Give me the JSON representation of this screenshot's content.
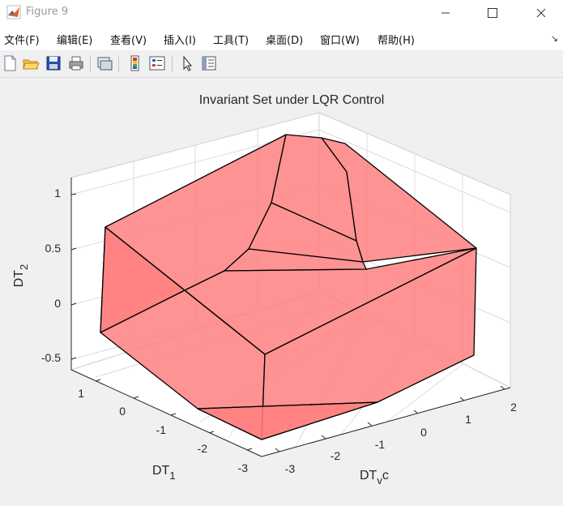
{
  "window": {
    "title": "Figure 9",
    "minimize_icon": "minimize-icon",
    "maximize_icon": "maximize-icon",
    "close_icon": "close-icon"
  },
  "menu": [
    {
      "label": "文件(F)"
    },
    {
      "label": "编辑(E)"
    },
    {
      "label": "查看(V)"
    },
    {
      "label": "插入(I)"
    },
    {
      "label": "工具(T)"
    },
    {
      "label": "桌面(D)"
    },
    {
      "label": "窗口(W)"
    },
    {
      "label": "帮助(H)"
    }
  ],
  "toolbar": {
    "icons": [
      "new-figure-icon",
      "open-file-icon",
      "save-icon",
      "print-icon",
      "link-plot-icon",
      "colorbar-icon",
      "legend-icon",
      "select-arrow-icon",
      "property-inspector-icon"
    ]
  },
  "plot": {
    "title": "Invariant Set under LQR Control",
    "zlabel_main": "DT",
    "zlabel_sub": "2",
    "ylabel_main": "DT",
    "ylabel_sub": "1",
    "xlabel_main": "DT",
    "xlabel_sub": "v",
    "xlabel_suffix": "c",
    "z_ticks": [
      "1",
      "0.5",
      "0",
      "-0.5"
    ],
    "y_ticks": [
      "1",
      "0",
      "-1",
      "-2",
      "-3"
    ],
    "x_ticks": [
      "-3",
      "-2",
      "-1",
      "0",
      "1",
      "2"
    ],
    "face_color": "#ff8080",
    "edge_color": "#000000"
  }
}
